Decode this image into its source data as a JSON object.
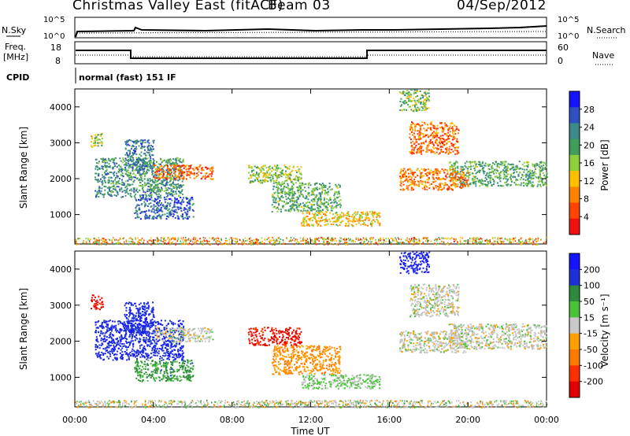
{
  "header": {
    "title": "Christmas Valley East (fitACF)",
    "beam": "Beam 03",
    "date": "04/Sep/2012"
  },
  "status_panels": {
    "nsky_label": "N.Sky",
    "nsky_ticks": [
      "10^5",
      "10^0"
    ],
    "nsearch_label": "N.Search",
    "nsearch_ticks": [
      "10^5",
      "10^0"
    ],
    "freq_label_1": "Freq.",
    "freq_label_2": "[MHz]",
    "freq_ticks": [
      "18",
      "8"
    ],
    "nave_label": "Nave",
    "nave_ticks": [
      "60",
      "0"
    ],
    "cpid_label": "CPID",
    "cpid_value": "normal (fast) 151 IF"
  },
  "colors": {
    "power_scale": [
      "#1414ff",
      "#2f50c0",
      "#3c8a8a",
      "#3f9e5a",
      "#8fcf3c",
      "#ffbf00",
      "#ff8200",
      "#ff4500",
      "#f01010"
    ],
    "velocity_scale": [
      "#1414ff",
      "#1c32d8",
      "#2e8a3c",
      "#49c43a",
      "#c8c8c8",
      "#ffa000",
      "#ff7a00",
      "#ff3000",
      "#e00000"
    ],
    "ground_scatter": "#bbbbbb"
  },
  "chart_data": [
    {
      "type": "heatmap",
      "title": "Power",
      "xlabel": "Time UT",
      "ylabel": "Slant Range [km]",
      "x_ticks": [
        "00:00",
        "04:00",
        "08:00",
        "12:00",
        "16:00",
        "20:00",
        "00:00"
      ],
      "xlim_hours": [
        0,
        24
      ],
      "y_ticks": [
        "1000",
        "2000",
        "3000",
        "4000"
      ],
      "ylim": [
        180,
        4500
      ],
      "colorbar": {
        "label": "Power [dB]",
        "ticks": [
          "28",
          "24",
          "20",
          "16",
          "12",
          "8",
          "4"
        ],
        "range": [
          0,
          30
        ]
      },
      "regions": [
        {
          "t": [
            0.8,
            1.4
          ],
          "r": [
            2900,
            3300
          ],
          "value": 14
        },
        {
          "t": [
            1.0,
            5.5
          ],
          "r": [
            1500,
            2600
          ],
          "value": 20
        },
        {
          "t": [
            2.5,
            4.0
          ],
          "r": [
            2200,
            3100
          ],
          "value": 22
        },
        {
          "t": [
            3.0,
            6.0
          ],
          "r": [
            900,
            1500
          ],
          "value": 24
        },
        {
          "t": [
            4.0,
            7.0
          ],
          "r": [
            2000,
            2400
          ],
          "value": 6
        },
        {
          "t": [
            8.8,
            11.5
          ],
          "r": [
            1900,
            2400
          ],
          "value": 15
        },
        {
          "t": [
            10.0,
            13.5
          ],
          "r": [
            1100,
            1900
          ],
          "value": 18
        },
        {
          "t": [
            11.5,
            15.5
          ],
          "r": [
            700,
            1100
          ],
          "value": 12
        },
        {
          "t": [
            16.5,
            18.0
          ],
          "r": [
            3900,
            4500
          ],
          "value": 16
        },
        {
          "t": [
            17.0,
            19.5
          ],
          "r": [
            2700,
            3600
          ],
          "value": 7
        },
        {
          "t": [
            19.0,
            24.0
          ],
          "r": [
            1800,
            2500
          ],
          "value": 18
        },
        {
          "t": [
            16.5,
            20.0
          ],
          "r": [
            1700,
            2300
          ],
          "value": 8
        }
      ]
    },
    {
      "type": "heatmap",
      "title": "Velocity",
      "xlabel": "Time UT",
      "ylabel": "Slant Range [km]",
      "x_ticks": [
        "00:00",
        "04:00",
        "08:00",
        "12:00",
        "16:00",
        "20:00",
        "00:00"
      ],
      "xlim_hours": [
        0,
        24
      ],
      "y_ticks": [
        "1000",
        "2000",
        "3000",
        "4000"
      ],
      "ylim": [
        180,
        4500
      ],
      "colorbar": {
        "label": "Velocity [m s⁻¹]",
        "ticks": [
          "200",
          "100",
          "50",
          "15",
          "-15",
          "-50",
          "-100",
          "-200"
        ],
        "range": [
          -250,
          250
        ]
      },
      "regions": [
        {
          "t": [
            0.8,
            1.4
          ],
          "r": [
            2900,
            3300
          ],
          "value": -200
        },
        {
          "t": [
            1.0,
            5.5
          ],
          "r": [
            1500,
            2600
          ],
          "value": 180
        },
        {
          "t": [
            2.5,
            4.0
          ],
          "r": [
            2200,
            3100
          ],
          "value": 180
        },
        {
          "t": [
            3.0,
            6.0
          ],
          "r": [
            900,
            1500
          ],
          "value": 100
        },
        {
          "t": [
            4.0,
            7.0
          ],
          "r": [
            2000,
            2400
          ],
          "value": 0
        },
        {
          "t": [
            8.8,
            11.5
          ],
          "r": [
            1900,
            2400
          ],
          "value": -200
        },
        {
          "t": [
            10.0,
            13.5
          ],
          "r": [
            1100,
            1900
          ],
          "value": -80
        },
        {
          "t": [
            11.5,
            15.5
          ],
          "r": [
            700,
            1100
          ],
          "value": 40
        },
        {
          "t": [
            16.5,
            18.0
          ],
          "r": [
            3900,
            4500
          ],
          "value": 200
        },
        {
          "t": [
            17.0,
            19.5
          ],
          "r": [
            2700,
            3600
          ],
          "value": 0
        },
        {
          "t": [
            19.0,
            24.0
          ],
          "r": [
            1800,
            2500
          ],
          "value": 0
        },
        {
          "t": [
            16.5,
            20.0
          ],
          "r": [
            1700,
            2300
          ],
          "value": 0
        }
      ]
    }
  ]
}
